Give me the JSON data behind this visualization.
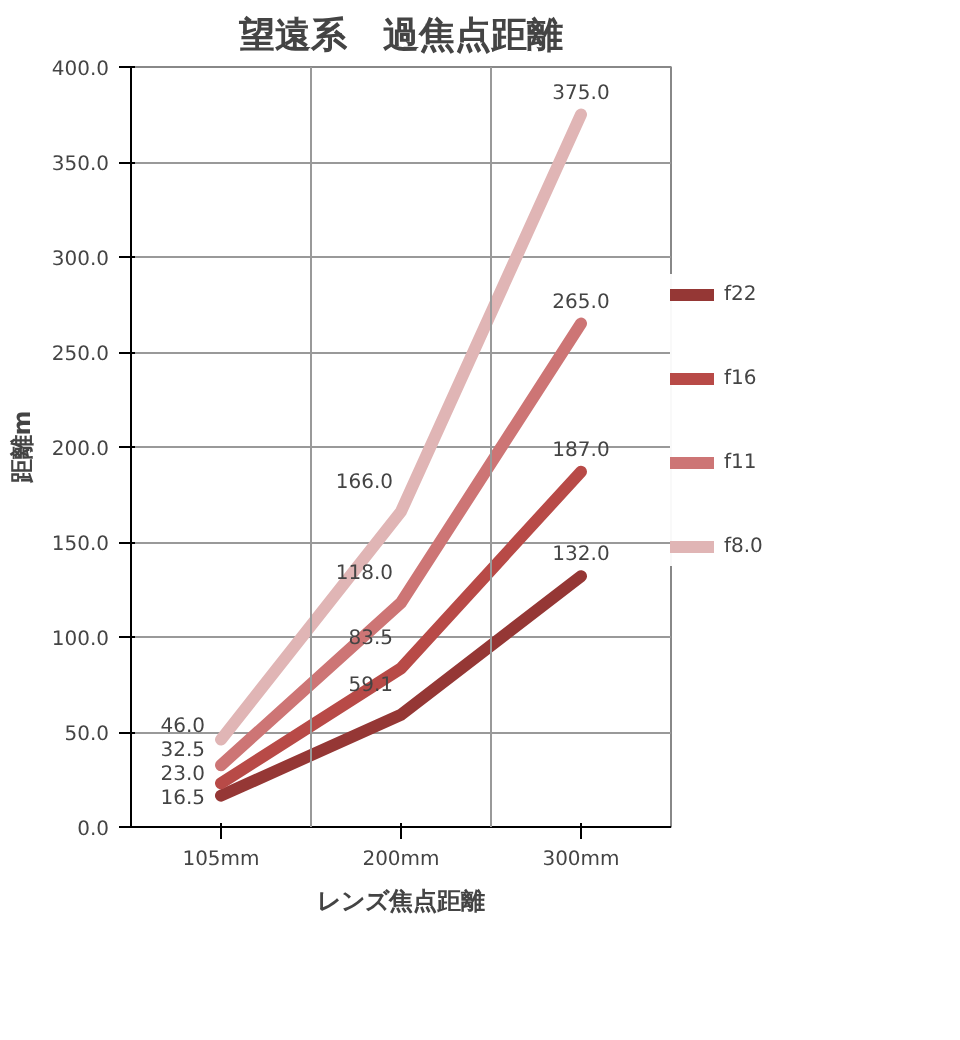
{
  "chart_data": {
    "type": "line",
    "title": "望遠系　過焦点距離",
    "xlabel": "レンズ焦点距離",
    "ylabel": "距離m",
    "categories": [
      "105mm",
      "200mm",
      "300mm"
    ],
    "ylim": [
      0,
      400
    ],
    "yticks": [
      {
        "value": 0,
        "label": "0.0"
      },
      {
        "value": 50,
        "label": "50.0"
      },
      {
        "value": 100,
        "label": "100.0"
      },
      {
        "value": 150,
        "label": "150.0"
      },
      {
        "value": 200,
        "label": "200.0"
      },
      {
        "value": 250,
        "label": "250.0"
      },
      {
        "value": 300,
        "label": "300.0"
      },
      {
        "value": 350,
        "label": "350.0"
      },
      {
        "value": 400,
        "label": "400.0"
      }
    ],
    "grid": true,
    "legend": "right",
    "line_style": "solid",
    "series": [
      {
        "name": "f22",
        "color": "#953735",
        "values": [
          16.5,
          59.1,
          132.0
        ],
        "value_labels": [
          "16.5",
          "59.1",
          "132.0"
        ]
      },
      {
        "name": "f16",
        "color": "#b84a47",
        "values": [
          23.0,
          83.5,
          187.0
        ],
        "value_labels": [
          "23.0",
          "83.5",
          "187.0"
        ]
      },
      {
        "name": "f11",
        "color": "#cd7575",
        "values": [
          32.5,
          118.0,
          265.0
        ],
        "value_labels": [
          "32.5",
          "118.0",
          "265.0"
        ]
      },
      {
        "name": "f8.0",
        "color": "#e0b5b5",
        "values": [
          46.0,
          166.0,
          375.0
        ],
        "value_labels": [
          "46.0",
          "166.0",
          "375.0"
        ]
      }
    ]
  }
}
